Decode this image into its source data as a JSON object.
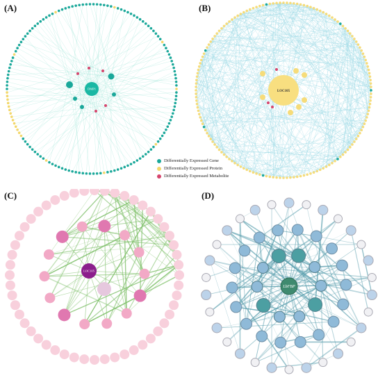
{
  "panels": {
    "A": {
      "label": "(A)",
      "center_label": "DMP1",
      "legend": [
        {
          "label": "Differentially Expressed Gene",
          "color": "#1aa89a"
        },
        {
          "label": "Differentially Expressed Protein",
          "color": "#f3d76a"
        },
        {
          "label": "Differentially Expressed Metabolite",
          "color": "#d6456d"
        }
      ],
      "colors": {
        "edge": "#8fe0d0",
        "gene": "#1aa89a",
        "protein": "#f3d76a",
        "metabolite": "#d6456d",
        "hub": "#1ab8a4"
      }
    },
    "B": {
      "label": "(B)",
      "center_label": "LOC105",
      "colors": {
        "edge": "#9fdbe6",
        "protein": "#f6dc7a",
        "metabolite": "#d6456d",
        "gene": "#1aa89a",
        "hub": "#f8df80"
      }
    },
    "C": {
      "label": "(C)",
      "center_label": "LOC105",
      "colors": {
        "edge": "#7fc06a",
        "outer": "#f8d0dc",
        "mid": "#f2a9c6",
        "inner": "#e078b0",
        "hub": "#8b1e8c",
        "ghost": "#e6c8de"
      }
    },
    "D": {
      "label": "(D)",
      "center_label": "LbFBP",
      "colors": {
        "edge": "#5a9fae",
        "outer_fill": "#f1f1f4",
        "outer_stroke": "#a9a9b3",
        "ring_fill": "#bcd3ea",
        "mid_fill": "#8fbad8",
        "inner_fill": "#4c9fa2",
        "hub": "#3e8a6f"
      }
    }
  }
}
